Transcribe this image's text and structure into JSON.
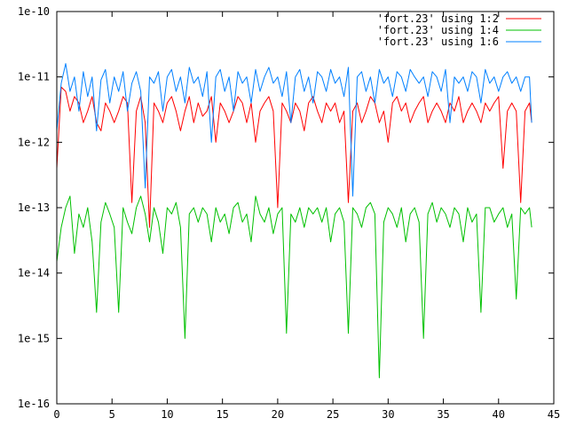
{
  "chart_data": {
    "type": "line",
    "title": "",
    "xlabel": "",
    "ylabel": "",
    "xlim": [
      0,
      45
    ],
    "ylim": [
      1e-16,
      1e-10
    ],
    "yscale": "log",
    "grid": false,
    "legend_position": "top-right",
    "xticks": [
      "0",
      "5",
      "10",
      "15",
      "20",
      "25",
      "30",
      "35",
      "40",
      "45"
    ],
    "yticks": [
      "1e-16",
      "1e-15",
      "1e-14",
      "1e-13",
      "1e-12",
      "1e-11",
      "1e-10"
    ],
    "series": [
      {
        "name": "'fort.23' using 1:2",
        "color": "#ff0000",
        "x": [
          0,
          0.4,
          0.8,
          1.2,
          1.6,
          2.0,
          2.4,
          2.8,
          3.2,
          3.6,
          4.0,
          4.4,
          4.8,
          5.2,
          5.6,
          6.0,
          6.4,
          6.8,
          7.2,
          7.6,
          8.0,
          8.4,
          8.8,
          9.2,
          9.6,
          10.0,
          10.4,
          10.8,
          11.2,
          11.6,
          12.0,
          12.4,
          12.8,
          13.2,
          13.6,
          14.0,
          14.4,
          14.8,
          15.2,
          15.6,
          16.0,
          16.4,
          16.8,
          17.2,
          17.6,
          18.0,
          18.4,
          18.8,
          19.2,
          19.6,
          20.0,
          20.4,
          20.8,
          21.2,
          21.6,
          22.0,
          22.4,
          22.8,
          23.2,
          23.6,
          24.0,
          24.4,
          24.8,
          25.2,
          25.6,
          26.0,
          26.4,
          26.8,
          27.2,
          27.6,
          28.0,
          28.4,
          28.8,
          29.2,
          29.6,
          30.0,
          30.4,
          30.8,
          31.2,
          31.6,
          32.0,
          32.4,
          32.8,
          33.2,
          33.6,
          34.0,
          34.4,
          34.8,
          35.2,
          35.6,
          36.0,
          36.4,
          36.8,
          37.2,
          37.6,
          38.0,
          38.4,
          38.8,
          39.2,
          39.6,
          40.0,
          40.4,
          40.8,
          41.2,
          41.6,
          42.0,
          42.4,
          42.8,
          43.0
        ],
        "y": [
          4e-13,
          7e-12,
          6e-12,
          3e-12,
          5e-12,
          4e-12,
          2e-12,
          3e-12,
          5e-12,
          2e-12,
          1.5e-12,
          4e-12,
          3e-12,
          2e-12,
          3e-12,
          5e-12,
          4e-12,
          1.2e-13,
          3e-12,
          5e-12,
          2e-12,
          5e-14,
          4e-12,
          3e-12,
          2e-12,
          4e-12,
          5e-12,
          3e-12,
          1.5e-12,
          3e-12,
          5e-12,
          2e-12,
          4e-12,
          2.5e-12,
          3e-12,
          5e-12,
          1e-12,
          4e-12,
          3e-12,
          2e-12,
          3e-12,
          5e-12,
          4e-12,
          2e-12,
          4e-12,
          1e-12,
          3e-12,
          4e-12,
          5e-12,
          3e-12,
          1e-13,
          4e-12,
          3e-12,
          2e-12,
          4e-12,
          3e-12,
          1.5e-12,
          4e-12,
          5e-12,
          3e-12,
          2e-12,
          4e-12,
          3e-12,
          4e-12,
          2e-12,
          3e-12,
          1.2e-13,
          3e-12,
          4e-12,
          2e-12,
          3e-12,
          5e-12,
          4e-12,
          2e-12,
          3e-12,
          1e-12,
          4e-12,
          5e-12,
          3e-12,
          4e-12,
          2e-12,
          3e-12,
          4e-12,
          5e-12,
          2e-12,
          3e-12,
          4e-12,
          3e-12,
          2e-12,
          4e-12,
          3e-12,
          5e-12,
          2e-12,
          3e-12,
          4e-12,
          3e-12,
          2e-12,
          4e-12,
          3e-12,
          4e-12,
          5e-12,
          4e-13,
          3e-12,
          4e-12,
          3e-12,
          1.2e-13,
          3e-12,
          4e-12,
          2e-12
        ]
      },
      {
        "name": "'fort.23' using 1:4",
        "color": "#00c000",
        "x": [
          0,
          0.4,
          0.8,
          1.2,
          1.6,
          2.0,
          2.4,
          2.8,
          3.2,
          3.6,
          4.0,
          4.4,
          4.8,
          5.2,
          5.6,
          6.0,
          6.4,
          6.8,
          7.2,
          7.6,
          8.0,
          8.4,
          8.8,
          9.2,
          9.6,
          10.0,
          10.4,
          10.8,
          11.2,
          11.6,
          12.0,
          12.4,
          12.8,
          13.2,
          13.6,
          14.0,
          14.4,
          14.8,
          15.2,
          15.6,
          16.0,
          16.4,
          16.8,
          17.2,
          17.6,
          18.0,
          18.4,
          18.8,
          19.2,
          19.6,
          20.0,
          20.4,
          20.8,
          21.2,
          21.6,
          22.0,
          22.4,
          22.8,
          23.2,
          23.6,
          24.0,
          24.4,
          24.8,
          25.2,
          25.6,
          26.0,
          26.4,
          26.8,
          27.2,
          27.6,
          28.0,
          28.4,
          28.8,
          29.2,
          29.6,
          30.0,
          30.4,
          30.8,
          31.2,
          31.6,
          32.0,
          32.4,
          32.8,
          33.2,
          33.6,
          34.0,
          34.4,
          34.8,
          35.2,
          35.6,
          36.0,
          36.4,
          36.8,
          37.2,
          37.6,
          38.0,
          38.4,
          38.8,
          39.2,
          39.6,
          40.0,
          40.4,
          40.8,
          41.2,
          41.6,
          42.0,
          42.4,
          42.8,
          43.0
        ],
        "y": [
          1.5e-14,
          5e-14,
          1e-13,
          1.5e-13,
          2e-14,
          8e-14,
          5e-14,
          1e-13,
          3e-14,
          2.5e-15,
          6e-14,
          1.2e-13,
          8e-14,
          5e-14,
          2.5e-15,
          1e-13,
          6e-14,
          4e-14,
          1e-13,
          1.5e-13,
          8e-14,
          3e-14,
          1e-13,
          6e-14,
          2e-14,
          1e-13,
          8e-14,
          1.2e-13,
          5e-14,
          1e-15,
          8e-14,
          1e-13,
          6e-14,
          1e-13,
          8e-14,
          3e-14,
          1e-13,
          6e-14,
          8e-14,
          4e-14,
          1e-13,
          1.2e-13,
          6e-14,
          8e-14,
          3e-14,
          1.5e-13,
          8e-14,
          6e-14,
          1e-13,
          4e-14,
          8e-14,
          1e-13,
          1.2e-15,
          8e-14,
          6e-14,
          1e-13,
          5e-14,
          1e-13,
          8e-14,
          1e-13,
          6e-14,
          1e-13,
          3e-14,
          8e-14,
          1e-13,
          6e-14,
          1.2e-15,
          1e-13,
          8e-14,
          5e-14,
          1e-13,
          1.2e-13,
          8e-14,
          2.5e-16,
          6e-14,
          1e-13,
          8e-14,
          5e-14,
          1e-13,
          3e-14,
          8e-14,
          1e-13,
          6e-14,
          1e-15,
          8e-14,
          1.2e-13,
          6e-14,
          1e-13,
          8e-14,
          5e-14,
          1e-13,
          8e-14,
          3e-14,
          1e-13,
          6e-14,
          8e-14,
          2.5e-15,
          1e-13,
          1e-13,
          6e-14,
          8e-14,
          1e-13,
          5e-14,
          8e-14,
          4e-15,
          1e-13,
          8e-14,
          1e-13,
          5e-14
        ]
      },
      {
        "name": "'fort.23' using 1:6",
        "color": "#0080ff",
        "x": [
          0,
          0.4,
          0.8,
          1.2,
          1.6,
          2.0,
          2.4,
          2.8,
          3.2,
          3.6,
          4.0,
          4.4,
          4.8,
          5.2,
          5.6,
          6.0,
          6.4,
          6.8,
          7.2,
          7.6,
          8.0,
          8.4,
          8.8,
          9.2,
          9.6,
          10.0,
          10.4,
          10.8,
          11.2,
          11.6,
          12.0,
          12.4,
          12.8,
          13.2,
          13.6,
          14.0,
          14.4,
          14.8,
          15.2,
          15.6,
          16.0,
          16.4,
          16.8,
          17.2,
          17.6,
          18.0,
          18.4,
          18.8,
          19.2,
          19.6,
          20.0,
          20.4,
          20.8,
          21.2,
          21.6,
          22.0,
          22.4,
          22.8,
          23.2,
          23.6,
          24.0,
          24.4,
          24.8,
          25.2,
          25.6,
          26.0,
          26.4,
          26.8,
          27.2,
          27.6,
          28.0,
          28.4,
          28.8,
          29.2,
          29.6,
          30.0,
          30.4,
          30.8,
          31.2,
          31.6,
          32.0,
          32.4,
          32.8,
          33.2,
          33.6,
          34.0,
          34.4,
          34.8,
          35.2,
          35.6,
          36.0,
          36.4,
          36.8,
          37.2,
          37.6,
          38.0,
          38.4,
          38.8,
          39.2,
          39.6,
          40.0,
          40.4,
          40.8,
          41.2,
          41.6,
          42.0,
          42.4,
          42.8,
          43.0
        ],
        "y": [
          1.5e-12,
          8e-12,
          1.6e-11,
          6e-12,
          1e-11,
          3e-12,
          1.2e-11,
          5e-12,
          1e-11,
          1.5e-12,
          9e-12,
          1.3e-11,
          4e-12,
          1e-11,
          6e-12,
          1.2e-11,
          3e-12,
          8e-12,
          1.2e-11,
          6e-12,
          2e-13,
          1e-11,
          8e-12,
          1.2e-11,
          3e-12,
          1e-11,
          1.3e-11,
          6e-12,
          1e-11,
          4e-12,
          1.4e-11,
          8e-12,
          1e-11,
          5e-12,
          1.2e-11,
          1e-12,
          1e-11,
          1.3e-11,
          6e-12,
          1e-11,
          3e-12,
          1.2e-11,
          8e-12,
          1e-11,
          4e-12,
          1.3e-11,
          6e-12,
          1e-11,
          1.4e-11,
          8e-12,
          1e-11,
          5e-12,
          1.2e-11,
          2e-12,
          1e-11,
          1.3e-11,
          6e-12,
          1e-11,
          4e-12,
          1.2e-11,
          1e-11,
          6e-12,
          1.3e-11,
          8e-12,
          1e-11,
          5e-12,
          1.4e-11,
          1.5e-13,
          1e-11,
          1.2e-11,
          6e-12,
          1e-11,
          4e-12,
          1.3e-11,
          8e-12,
          1e-11,
          5e-12,
          1.2e-11,
          1e-11,
          6e-12,
          1.3e-11,
          1e-11,
          8e-12,
          1e-11,
          5e-12,
          1.2e-11,
          1e-11,
          6e-12,
          1.3e-11,
          2e-12,
          1e-11,
          8e-12,
          1e-11,
          6e-12,
          1.2e-11,
          1e-11,
          4e-12,
          1.3e-11,
          8e-12,
          1e-11,
          6e-12,
          1e-11,
          1.2e-11,
          8e-12,
          1e-11,
          6e-12,
          1e-11,
          1e-11,
          2e-12
        ]
      }
    ]
  }
}
